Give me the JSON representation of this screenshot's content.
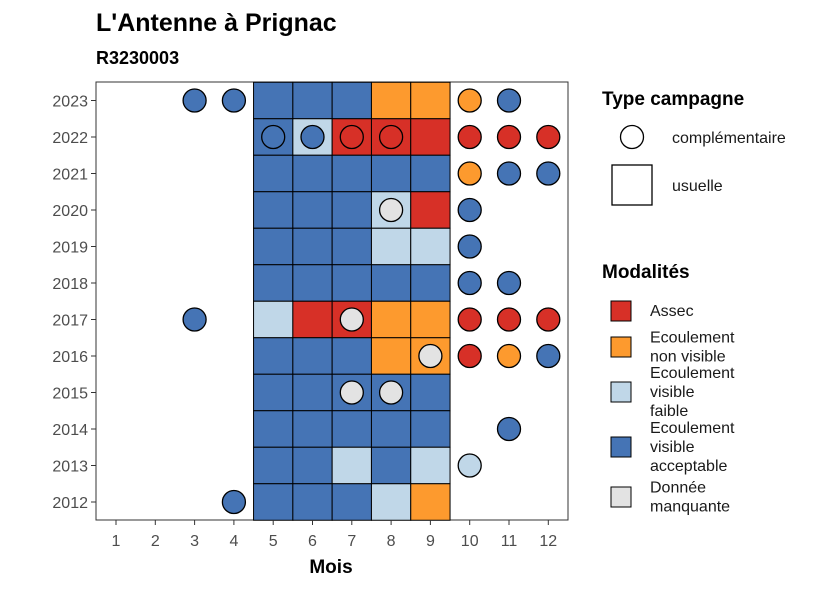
{
  "chart_data": {
    "type": "heatmap",
    "title": "L'Antenne à Prignac",
    "subtitle": "R3230003",
    "xlabel": "Mois",
    "ylabel": "",
    "x_categories": [
      "1",
      "2",
      "3",
      "4",
      "5",
      "6",
      "7",
      "8",
      "9",
      "10",
      "11",
      "12"
    ],
    "y_categories": [
      "2012",
      "2013",
      "2014",
      "2015",
      "2016",
      "2017",
      "2018",
      "2019",
      "2020",
      "2021",
      "2022",
      "2023"
    ],
    "grid": false,
    "legend_position": "right",
    "legend_type": {
      "title": "Type campagne",
      "items": [
        {
          "key": "complementaire",
          "label": "complémentaire",
          "shape": "circle"
        },
        {
          "key": "usuelle",
          "label": "usuelle",
          "shape": "square"
        }
      ]
    },
    "legend_modalites": {
      "title": "Modalités",
      "items": [
        {
          "key": "assec",
          "lines": [
            "Assec"
          ],
          "color": "#d73027"
        },
        {
          "key": "nonvisible",
          "lines": [
            "Ecoulement",
            "non visible"
          ],
          "color": "#fd9a2e"
        },
        {
          "key": "faible",
          "lines": [
            "Ecoulement",
            "visible",
            "faible"
          ],
          "color": "#c0d7e8"
        },
        {
          "key": "acceptable",
          "lines": [
            "Ecoulement",
            "visible",
            "acceptable"
          ],
          "color": "#4574b5"
        },
        {
          "key": "manquante",
          "lines": [
            "Donnée",
            "manquante"
          ],
          "color": "#e3e3e3"
        }
      ]
    },
    "usuelle": [
      {
        "year": "2023",
        "month": 5,
        "m": "acceptable"
      },
      {
        "year": "2023",
        "month": 6,
        "m": "acceptable"
      },
      {
        "year": "2023",
        "month": 7,
        "m": "acceptable"
      },
      {
        "year": "2023",
        "month": 8,
        "m": "nonvisible"
      },
      {
        "year": "2023",
        "month": 9,
        "m": "nonvisible"
      },
      {
        "year": "2022",
        "month": 5,
        "m": "acceptable"
      },
      {
        "year": "2022",
        "month": 6,
        "m": "faible"
      },
      {
        "year": "2022",
        "month": 7,
        "m": "assec"
      },
      {
        "year": "2022",
        "month": 8,
        "m": "assec"
      },
      {
        "year": "2022",
        "month": 9,
        "m": "assec"
      },
      {
        "year": "2021",
        "month": 5,
        "m": "acceptable"
      },
      {
        "year": "2021",
        "month": 6,
        "m": "acceptable"
      },
      {
        "year": "2021",
        "month": 7,
        "m": "acceptable"
      },
      {
        "year": "2021",
        "month": 8,
        "m": "acceptable"
      },
      {
        "year": "2021",
        "month": 9,
        "m": "acceptable"
      },
      {
        "year": "2020",
        "month": 5,
        "m": "acceptable"
      },
      {
        "year": "2020",
        "month": 6,
        "m": "acceptable"
      },
      {
        "year": "2020",
        "month": 7,
        "m": "acceptable"
      },
      {
        "year": "2020",
        "month": 8,
        "m": "faible"
      },
      {
        "year": "2020",
        "month": 9,
        "m": "assec"
      },
      {
        "year": "2019",
        "month": 5,
        "m": "acceptable"
      },
      {
        "year": "2019",
        "month": 6,
        "m": "acceptable"
      },
      {
        "year": "2019",
        "month": 7,
        "m": "acceptable"
      },
      {
        "year": "2019",
        "month": 8,
        "m": "faible"
      },
      {
        "year": "2019",
        "month": 9,
        "m": "faible"
      },
      {
        "year": "2018",
        "month": 5,
        "m": "acceptable"
      },
      {
        "year": "2018",
        "month": 6,
        "m": "acceptable"
      },
      {
        "year": "2018",
        "month": 7,
        "m": "acceptable"
      },
      {
        "year": "2018",
        "month": 8,
        "m": "acceptable"
      },
      {
        "year": "2018",
        "month": 9,
        "m": "acceptable"
      },
      {
        "year": "2017",
        "month": 5,
        "m": "faible"
      },
      {
        "year": "2017",
        "month": 6,
        "m": "assec"
      },
      {
        "year": "2017",
        "month": 7,
        "m": "assec"
      },
      {
        "year": "2017",
        "month": 8,
        "m": "nonvisible"
      },
      {
        "year": "2017",
        "month": 9,
        "m": "nonvisible"
      },
      {
        "year": "2016",
        "month": 5,
        "m": "acceptable"
      },
      {
        "year": "2016",
        "month": 6,
        "m": "acceptable"
      },
      {
        "year": "2016",
        "month": 7,
        "m": "acceptable"
      },
      {
        "year": "2016",
        "month": 8,
        "m": "nonvisible"
      },
      {
        "year": "2016",
        "month": 9,
        "m": "nonvisible"
      },
      {
        "year": "2015",
        "month": 5,
        "m": "acceptable"
      },
      {
        "year": "2015",
        "month": 6,
        "m": "acceptable"
      },
      {
        "year": "2015",
        "month": 7,
        "m": "acceptable"
      },
      {
        "year": "2015",
        "month": 8,
        "m": "acceptable"
      },
      {
        "year": "2015",
        "month": 9,
        "m": "acceptable"
      },
      {
        "year": "2014",
        "month": 5,
        "m": "acceptable"
      },
      {
        "year": "2014",
        "month": 6,
        "m": "acceptable"
      },
      {
        "year": "2014",
        "month": 7,
        "m": "acceptable"
      },
      {
        "year": "2014",
        "month": 8,
        "m": "acceptable"
      },
      {
        "year": "2014",
        "month": 9,
        "m": "acceptable"
      },
      {
        "year": "2013",
        "month": 5,
        "m": "acceptable"
      },
      {
        "year": "2013",
        "month": 6,
        "m": "acceptable"
      },
      {
        "year": "2013",
        "month": 7,
        "m": "faible"
      },
      {
        "year": "2013",
        "month": 8,
        "m": "acceptable"
      },
      {
        "year": "2013",
        "month": 9,
        "m": "faible"
      },
      {
        "year": "2012",
        "month": 5,
        "m": "acceptable"
      },
      {
        "year": "2012",
        "month": 6,
        "m": "acceptable"
      },
      {
        "year": "2012",
        "month": 7,
        "m": "acceptable"
      },
      {
        "year": "2012",
        "month": 8,
        "m": "faible"
      },
      {
        "year": "2012",
        "month": 9,
        "m": "nonvisible"
      }
    ],
    "complementaire": [
      {
        "year": "2023",
        "month": 3,
        "m": "acceptable"
      },
      {
        "year": "2023",
        "month": 4,
        "m": "acceptable"
      },
      {
        "year": "2023",
        "month": 10,
        "m": "nonvisible"
      },
      {
        "year": "2023",
        "month": 11,
        "m": "acceptable"
      },
      {
        "year": "2022",
        "month": 5,
        "m": "acceptable"
      },
      {
        "year": "2022",
        "month": 6,
        "m": "acceptable"
      },
      {
        "year": "2022",
        "month": 7,
        "m": "assec"
      },
      {
        "year": "2022",
        "month": 8,
        "m": "assec"
      },
      {
        "year": "2022",
        "month": 10,
        "m": "assec"
      },
      {
        "year": "2022",
        "month": 11,
        "m": "assec"
      },
      {
        "year": "2022",
        "month": 12,
        "m": "assec"
      },
      {
        "year": "2021",
        "month": 10,
        "m": "nonvisible"
      },
      {
        "year": "2021",
        "month": 11,
        "m": "acceptable"
      },
      {
        "year": "2021",
        "month": 12,
        "m": "acceptable"
      },
      {
        "year": "2020",
        "month": 8,
        "m": "manquante"
      },
      {
        "year": "2020",
        "month": 10,
        "m": "acceptable"
      },
      {
        "year": "2019",
        "month": 10,
        "m": "acceptable"
      },
      {
        "year": "2018",
        "month": 10,
        "m": "acceptable"
      },
      {
        "year": "2018",
        "month": 11,
        "m": "acceptable"
      },
      {
        "year": "2017",
        "month": 3,
        "m": "acceptable"
      },
      {
        "year": "2017",
        "month": 7,
        "m": "manquante"
      },
      {
        "year": "2017",
        "month": 10,
        "m": "assec"
      },
      {
        "year": "2017",
        "month": 11,
        "m": "assec"
      },
      {
        "year": "2017",
        "month": 12,
        "m": "assec"
      },
      {
        "year": "2016",
        "month": 9,
        "m": "manquante"
      },
      {
        "year": "2016",
        "month": 10,
        "m": "assec"
      },
      {
        "year": "2016",
        "month": 11,
        "m": "nonvisible"
      },
      {
        "year": "2016",
        "month": 12,
        "m": "acceptable"
      },
      {
        "year": "2015",
        "month": 7,
        "m": "manquante"
      },
      {
        "year": "2015",
        "month": 8,
        "m": "manquante"
      },
      {
        "year": "2014",
        "month": 11,
        "m": "acceptable"
      },
      {
        "year": "2013",
        "month": 10,
        "m": "faible"
      },
      {
        "year": "2012",
        "month": 4,
        "m": "acceptable"
      }
    ]
  }
}
